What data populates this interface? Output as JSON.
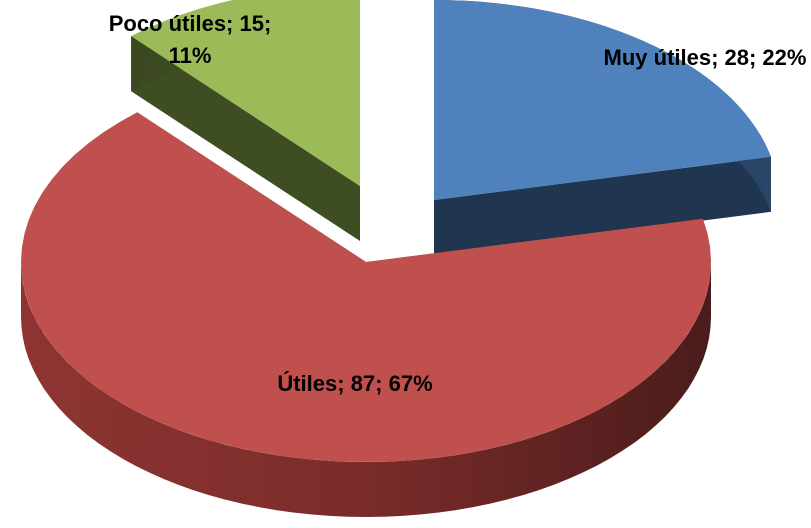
{
  "chart_data": {
    "type": "pie3d",
    "values": [
      28,
      87,
      15
    ],
    "value_labels": [
      "Muy útiles; 28; 22%",
      "Útiles; 87; 67%",
      "Poco útiles; 15; 11%"
    ],
    "colors": [
      "#4f81bd",
      "#c0504d",
      "#9bbb59"
    ]
  }
}
